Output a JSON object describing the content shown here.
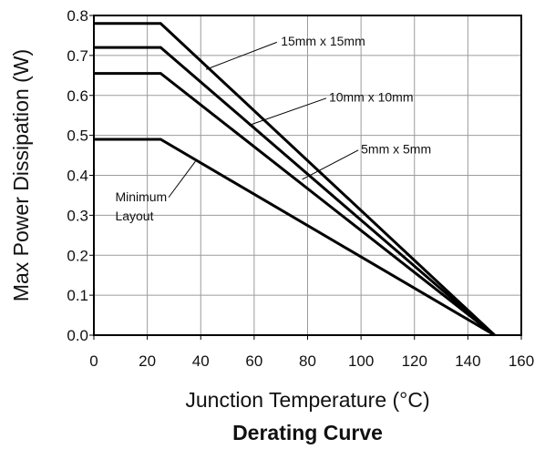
{
  "chart_data": {
    "type": "line",
    "title": "Derating Curve",
    "xlabel": "Junction Temperature (°C)",
    "ylabel": "Max Power Dissipation (W)",
    "xlim": [
      0,
      160
    ],
    "ylim": [
      0,
      0.8
    ],
    "x_ticks": [
      0,
      20,
      40,
      60,
      80,
      100,
      120,
      140,
      160
    ],
    "y_ticks": [
      0.0,
      0.1,
      0.2,
      0.3,
      0.4,
      0.5,
      0.6,
      0.7,
      0.8
    ],
    "x_tick_labels": [
      "0",
      "20",
      "40",
      "60",
      "80",
      "100",
      "120",
      "140",
      "160"
    ],
    "y_tick_labels": [
      "0.0",
      "0.1",
      "0.2",
      "0.3",
      "0.4",
      "0.5",
      "0.6",
      "0.7",
      "0.8"
    ],
    "grid": true,
    "series": [
      {
        "name": "15mm x 15mm",
        "color": "#000000",
        "x": [
          0,
          25,
          150
        ],
        "y": [
          0.78,
          0.78,
          0.0
        ]
      },
      {
        "name": "10mm x 10mm",
        "color": "#000000",
        "x": [
          0,
          25,
          150
        ],
        "y": [
          0.72,
          0.72,
          0.0
        ]
      },
      {
        "name": "5mm x 5mm",
        "color": "#000000",
        "x": [
          0,
          25,
          150
        ],
        "y": [
          0.655,
          0.655,
          0.0
        ]
      },
      {
        "name": "Minimum Layout",
        "color": "#000000",
        "x": [
          0,
          25,
          150
        ],
        "y": [
          0.49,
          0.49,
          0.0
        ]
      }
    ],
    "annotations": [
      {
        "lines": [
          "15mm x 15mm"
        ],
        "x": 148,
        "text_x": 70,
        "text_y": 0.725,
        "arrow_from": [
          68.5,
          0.733
        ],
        "arrow_to": [
          42,
          0.665
        ]
      },
      {
        "lines": [
          "10mm x 10mm"
        ],
        "x": 148,
        "text_x": 88,
        "text_y": 0.585,
        "arrow_from": [
          87,
          0.593
        ],
        "arrow_to": [
          58,
          0.525
        ]
      },
      {
        "lines": [
          "5mm x 5mm"
        ],
        "x": 148,
        "text_x": 100,
        "text_y": 0.455,
        "arrow_from": [
          99,
          0.463
        ],
        "arrow_to": [
          78,
          0.39
        ]
      },
      {
        "lines": [
          "Minimum",
          "Layout"
        ],
        "x": 148,
        "text_x": 8,
        "text_y": 0.335,
        "arrow_from": [
          28,
          0.345
        ],
        "arrow_to": [
          38,
          0.435
        ]
      }
    ]
  }
}
